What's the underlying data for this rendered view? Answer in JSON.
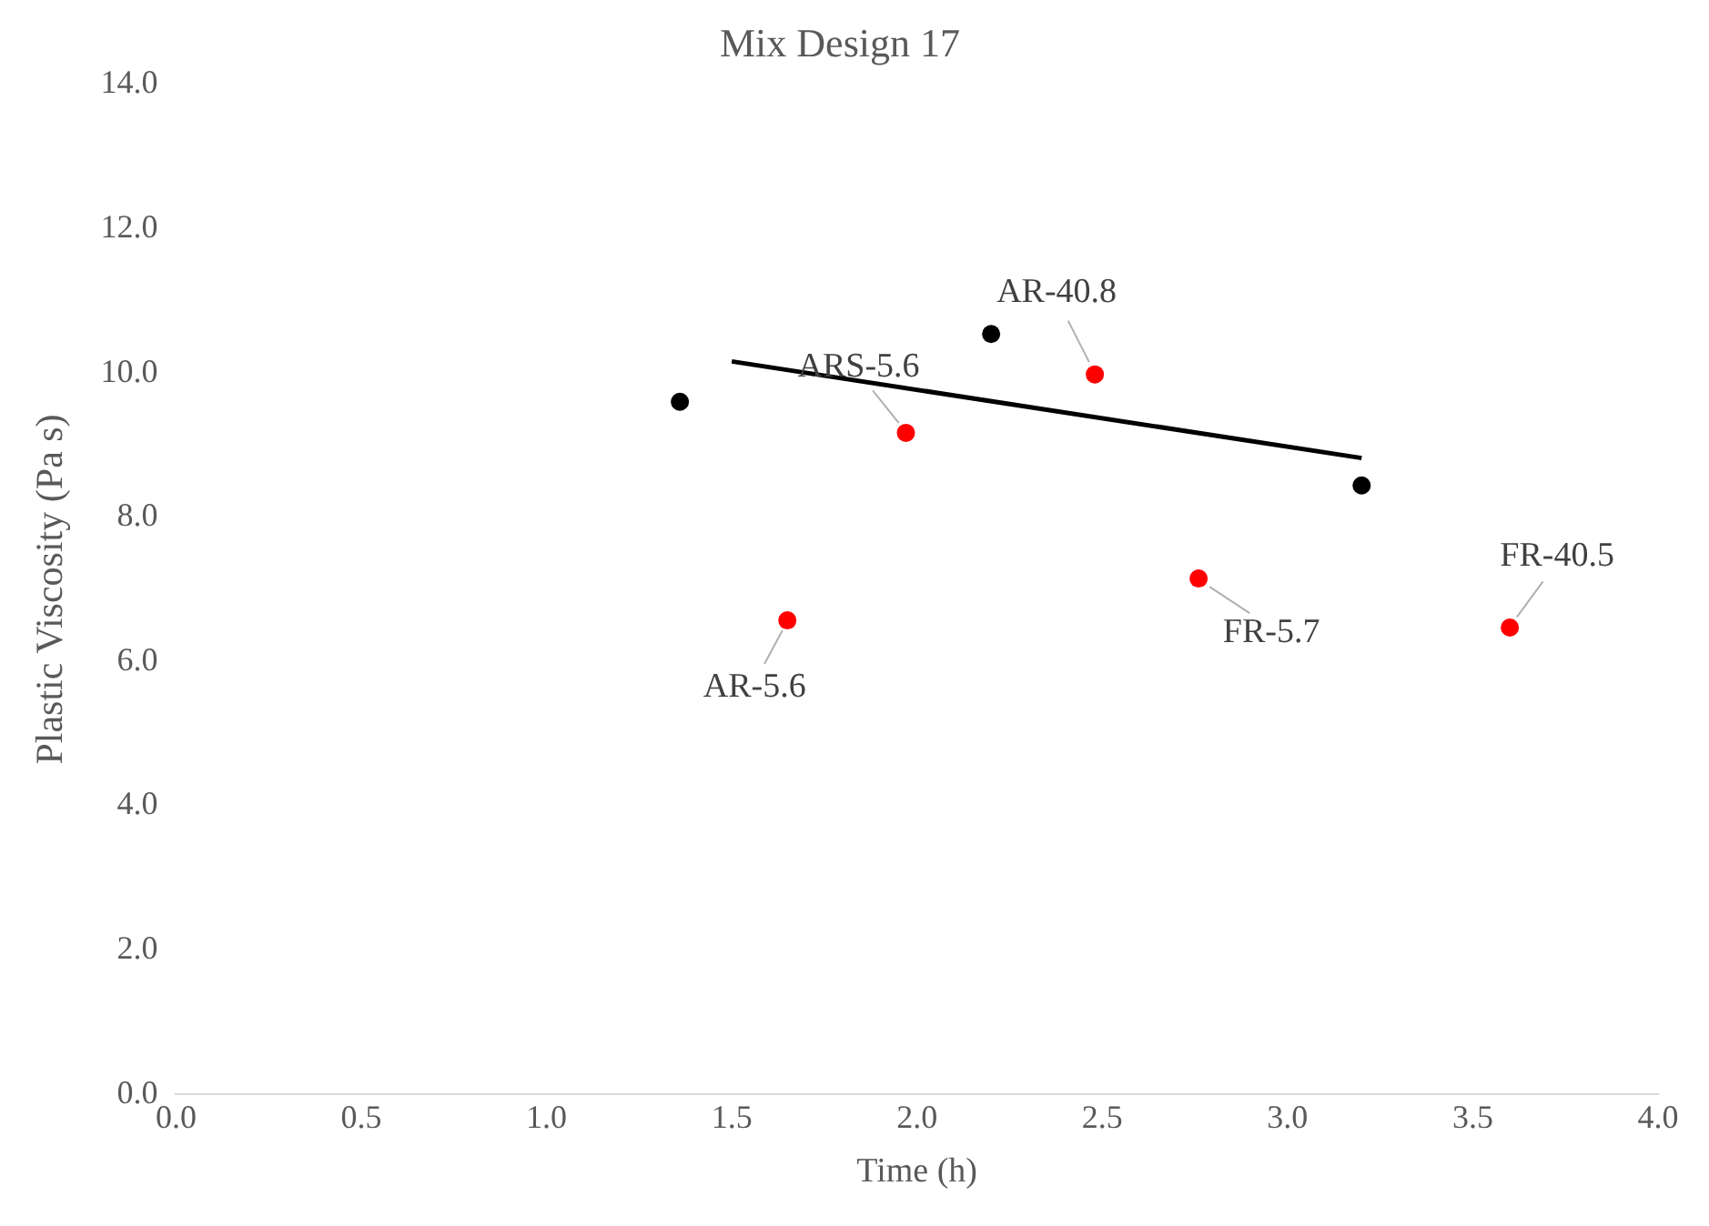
{
  "chart_data": {
    "type": "scatter",
    "title": "Mix Design 17",
    "xlabel": "Time (h)",
    "ylabel": "Plastic Viscosity (Pa s)",
    "xlim": [
      0,
      4
    ],
    "xticks": [
      {
        "value": 0,
        "label": "0.0"
      },
      {
        "value": 0.5,
        "label": "0.5"
      },
      {
        "value": 1,
        "label": "1.0"
      },
      {
        "value": 1.5,
        "label": "1.5"
      },
      {
        "value": 2,
        "label": "2.0"
      },
      {
        "value": 2.5,
        "label": "2.5"
      },
      {
        "value": 3,
        "label": "3.0"
      },
      {
        "value": 3.5,
        "label": "3.5"
      },
      {
        "value": 4,
        "label": "4.0"
      }
    ],
    "ylim": [
      0,
      14
    ],
    "yticks": [
      {
        "value": 0,
        "label": "0.0"
      },
      {
        "value": 2,
        "label": "2.0"
      },
      {
        "value": 4,
        "label": "4.0"
      },
      {
        "value": 6,
        "label": "6.0"
      },
      {
        "value": 8,
        "label": "8.0"
      },
      {
        "value": 10,
        "label": "10.0"
      },
      {
        "value": 12,
        "label": "12.0"
      },
      {
        "value": 14,
        "label": "14.0"
      }
    ],
    "grid": false,
    "legend": false,
    "series": [
      {
        "color": "#000000",
        "marker": "circle",
        "x": [
          1.36,
          2.2,
          3.2
        ],
        "values": [
          9.6,
          10.54,
          8.44
        ]
      },
      {
        "color": "#ff0000",
        "marker": "circle",
        "x": [
          1.65,
          1.97,
          2.48,
          2.76,
          3.6
        ],
        "values": [
          6.57,
          9.17,
          9.98,
          7.15,
          6.47
        ]
      },
      {
        "type": "line",
        "color": "#000000",
        "marker": "none",
        "x": [
          1.5,
          3.2
        ],
        "values": [
          10.16,
          8.82
        ]
      }
    ],
    "annotations": [
      {
        "text": "AR-5.6",
        "x": 1.65,
        "y": 6.57
      },
      {
        "text": "ARS-5.6",
        "x": 1.97,
        "y": 9.17
      },
      {
        "text": "AR-40.8",
        "x": 2.48,
        "y": 9.98
      },
      {
        "text": "FR-5.7",
        "x": 2.76,
        "y": 7.15
      },
      {
        "text": "FR-40.5",
        "x": 3.6,
        "y": 6.47
      }
    ]
  }
}
